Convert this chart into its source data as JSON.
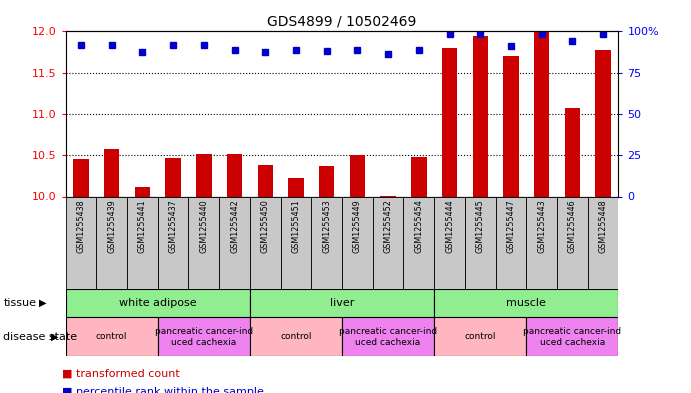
{
  "title": "GDS4899 / 10502469",
  "samples": [
    "GSM1255438",
    "GSM1255439",
    "GSM1255441",
    "GSM1255437",
    "GSM1255440",
    "GSM1255442",
    "GSM1255450",
    "GSM1255451",
    "GSM1255453",
    "GSM1255449",
    "GSM1255452",
    "GSM1255454",
    "GSM1255444",
    "GSM1255445",
    "GSM1255447",
    "GSM1255443",
    "GSM1255446",
    "GSM1255448"
  ],
  "red_values": [
    10.45,
    10.57,
    10.12,
    10.47,
    10.52,
    10.51,
    10.38,
    10.23,
    10.37,
    10.5,
    10.01,
    10.48,
    11.8,
    11.95,
    11.7,
    12.0,
    11.07,
    11.77
  ],
  "blue_values": [
    11.83,
    11.83,
    11.75,
    11.83,
    11.83,
    11.78,
    11.75,
    11.78,
    11.76,
    11.78,
    11.73,
    11.78,
    11.97,
    11.97,
    11.82,
    11.97,
    11.89,
    11.97
  ],
  "ylim_left": [
    10.0,
    12.0
  ],
  "ylim_right": [
    0,
    100
  ],
  "yticks_left": [
    10.0,
    10.5,
    11.0,
    11.5,
    12.0
  ],
  "yticks_right": [
    0,
    25,
    50,
    75,
    100
  ],
  "bar_color": "#CC0000",
  "dot_color": "#0000CC",
  "tissues": [
    {
      "label": "white adipose",
      "start": 0,
      "end": 6
    },
    {
      "label": "liver",
      "start": 6,
      "end": 12
    },
    {
      "label": "muscle",
      "start": 12,
      "end": 18
    }
  ],
  "disease_states": [
    {
      "label": "control",
      "start": 0,
      "end": 3,
      "type": "control"
    },
    {
      "label": "pancreatic cancer-ind\nuced cachexia",
      "start": 3,
      "end": 6,
      "type": "cachexia"
    },
    {
      "label": "control",
      "start": 6,
      "end": 9,
      "type": "control"
    },
    {
      "label": "pancreatic cancer-ind\nuced cachexia",
      "start": 9,
      "end": 12,
      "type": "cachexia"
    },
    {
      "label": "control",
      "start": 12,
      "end": 15,
      "type": "control"
    },
    {
      "label": "pancreatic cancer-ind\nuced cachexia",
      "start": 15,
      "end": 18,
      "type": "cachexia"
    }
  ],
  "tissue_color": "#90EE90",
  "control_color": "#FFB6C1",
  "cachexia_color": "#EE82EE",
  "sample_box_color": "#C8C8C8"
}
